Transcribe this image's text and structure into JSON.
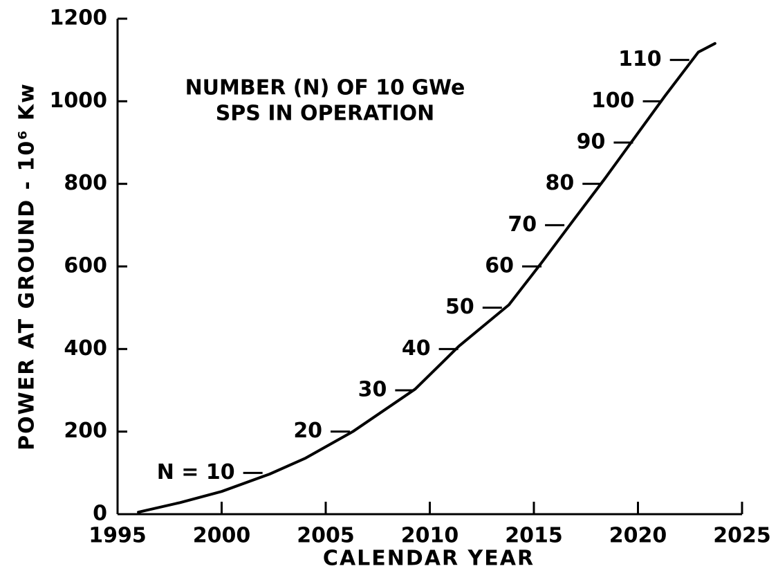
{
  "chart_data": {
    "type": "line",
    "xlabel": "CALENDAR YEAR",
    "ylabel": "POWER AT GROUND - 10⁶ Kw",
    "note": [
      "NUMBER (N) OF 10 GWe",
      "SPS IN OPERATION"
    ],
    "x": [
      1996,
      1998,
      2000,
      2002.3,
      2004,
      2006.3,
      2009.3,
      2011.4,
      2013.8,
      2015.4,
      2016.9,
      2018.4,
      2019.9,
      2021.3,
      2022.9,
      2023.7
    ],
    "series": [
      {
        "name": "Power at ground",
        "color": "#000000",
        "values": [
          5,
          28,
          55,
          97,
          135,
          200,
          303,
          407,
          507,
          611,
          712,
          812,
          916,
          1013,
          1119,
          1140
        ]
      }
    ],
    "annotations": [
      {
        "text": "N = 10",
        "x": 2001.5,
        "y": 100
      },
      {
        "text": "20",
        "x": 2005.7,
        "y": 200
      },
      {
        "text": "30",
        "x": 2008.8,
        "y": 300
      },
      {
        "text": "40",
        "x": 2010.9,
        "y": 400
      },
      {
        "text": "50",
        "x": 2013.0,
        "y": 500
      },
      {
        "text": "60",
        "x": 2014.9,
        "y": 600
      },
      {
        "text": "70",
        "x": 2016.0,
        "y": 700
      },
      {
        "text": "80",
        "x": 2017.8,
        "y": 800
      },
      {
        "text": "90",
        "x": 2019.3,
        "y": 900
      },
      {
        "text": "100",
        "x": 2020.7,
        "y": 1000
      },
      {
        "text": "110",
        "x": 2022.0,
        "y": 1100
      }
    ],
    "xlim": [
      1995,
      2025
    ],
    "xticks": [
      1995,
      2000,
      2005,
      2010,
      2015,
      2020,
      2025
    ],
    "ylim": [
      0,
      1200
    ],
    "yticks": [
      0,
      200,
      400,
      600,
      800,
      1000,
      1200
    ]
  }
}
